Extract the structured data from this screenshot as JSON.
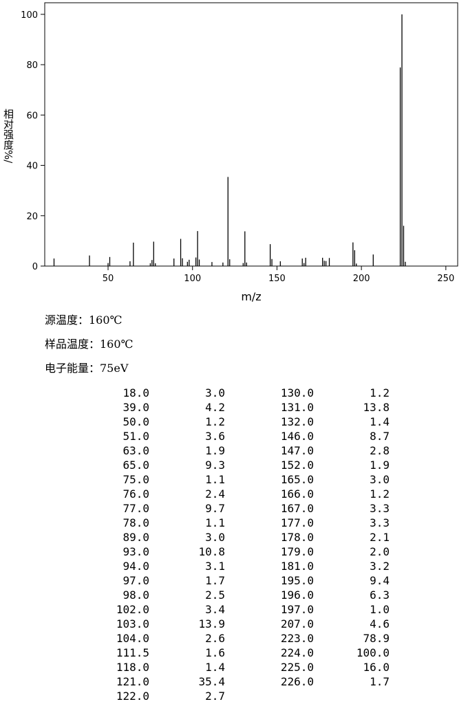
{
  "chart_data": {
    "type": "bar",
    "xlabel": "m/z",
    "ylabel": "相对强度%/",
    "x": [
      18,
      39,
      50,
      51,
      63,
      65,
      75,
      76,
      77,
      78,
      89,
      93,
      94,
      97,
      98,
      102,
      103,
      104,
      111.5,
      118,
      121,
      122,
      130,
      131,
      132,
      146,
      147,
      152,
      165,
      166,
      167,
      177,
      178,
      179,
      181,
      195,
      196,
      197,
      207,
      223,
      224,
      225,
      226
    ],
    "x_labels": [
      "18.0",
      "39.0",
      "50.0",
      "51.0",
      "63.0",
      "65.0",
      "75.0",
      "76.0",
      "77.0",
      "78.0",
      "89.0",
      "93.0",
      "94.0",
      "97.0",
      "98.0",
      "102.0",
      "103.0",
      "104.0",
      "111.5",
      "118.0",
      "121.0",
      "122.0",
      "130.0",
      "131.0",
      "132.0",
      "146.0",
      "147.0",
      "152.0",
      "165.0",
      "166.0",
      "167.0",
      "177.0",
      "178.0",
      "179.0",
      "181.0",
      "195.0",
      "196.0",
      "197.0",
      "207.0",
      "223.0",
      "224.0",
      "225.0",
      "226.0"
    ],
    "values": [
      3.0,
      4.2,
      1.2,
      3.6,
      1.9,
      9.3,
      1.1,
      2.4,
      9.7,
      1.1,
      3.0,
      10.8,
      3.1,
      1.7,
      2.5,
      3.4,
      13.9,
      2.6,
      1.6,
      1.4,
      35.4,
      2.7,
      1.2,
      13.8,
      1.4,
      8.7,
      2.8,
      1.9,
      3.0,
      1.2,
      3.3,
      3.3,
      2.1,
      2.0,
      3.2,
      9.4,
      6.3,
      1.0,
      4.6,
      78.9,
      100,
      16.0,
      1.7
    ],
    "value_labels": [
      "3.0",
      "4.2",
      "1.2",
      "3.6",
      "1.9",
      "9.3",
      "1.1",
      "2.4",
      "9.7",
      "1.1",
      "3.0",
      "10.8",
      "3.1",
      "1.7",
      "2.5",
      "3.4",
      "13.9",
      "2.6",
      "1.6",
      "1.4",
      "35.4",
      "2.7",
      "1.2",
      "13.8",
      "1.4",
      "8.7",
      "2.8",
      "1.9",
      "3.0",
      "1.2",
      "3.3",
      "3.3",
      "2.1",
      "2.0",
      "3.2",
      "9.4",
      "6.3",
      "1.0",
      "4.6",
      "78.9",
      "100.0",
      "16.0",
      "1.7"
    ],
    "color": "#000000",
    "xlim": [
      12.5,
      257
    ],
    "xticks": [
      50,
      100,
      150,
      200,
      250
    ],
    "ylim": [
      0,
      104.6
    ],
    "yticks": [
      0,
      20,
      40,
      60,
      80,
      100
    ]
  },
  "info": [
    "源温度：160℃",
    "样品温度：160℃",
    "电子能量：75eV"
  ]
}
